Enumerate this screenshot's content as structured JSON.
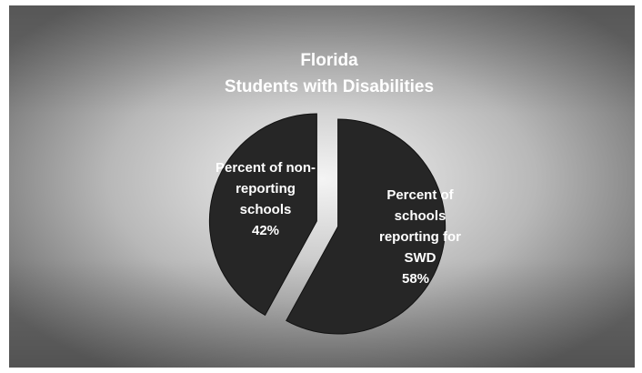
{
  "chart_data": {
    "type": "pie",
    "title_lines": [
      "Florida",
      "Students with Disabilities"
    ],
    "slices": [
      {
        "label_lines": [
          "Percent of",
          "schools",
          "reporting for",
          "SWD",
          "58%"
        ],
        "value": 58,
        "exploded": true
      },
      {
        "label_lines": [
          "Percent of non-",
          "reporting",
          "schools",
          "42%"
        ],
        "value": 42,
        "exploded": true
      }
    ],
    "colors": {
      "slice_fill": "#262626",
      "slice_stroke": "#111111",
      "label_text": "#ffffff",
      "title_text": "#ffffff",
      "background_center": "#f4f4f4",
      "background_edge": "#6a6a6a"
    }
  }
}
